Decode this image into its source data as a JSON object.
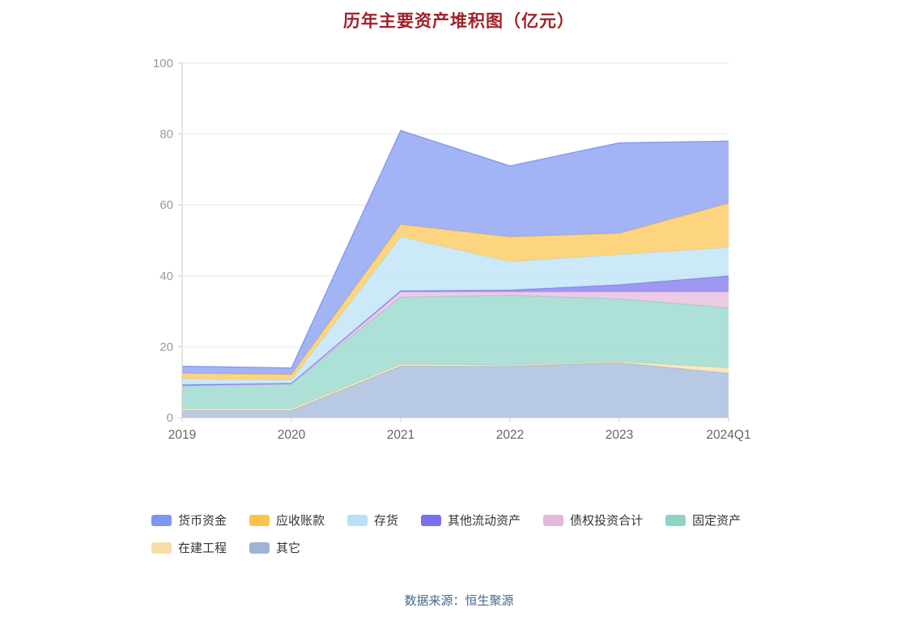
{
  "colors": {
    "title": "#a02128",
    "footer_source": "#45688e",
    "grid": "#e8e8e8",
    "axis": "#cccccc",
    "y_tick_label": "#999999",
    "x_tick_label": "#666666"
  },
  "chart_data": {
    "type": "area",
    "stacked": true,
    "title": "历年主要资产堆积图（亿元）",
    "categories": [
      "2019",
      "2020",
      "2021",
      "2022",
      "2023",
      "2024Q1"
    ],
    "series": [
      {
        "name": "其它",
        "color": "#9db4d9",
        "values": [
          2,
          2,
          14.5,
          14.5,
          15.5,
          12.5
        ]
      },
      {
        "name": "在建工程",
        "color": "#f8dda6",
        "values": [
          0.5,
          0.5,
          0.5,
          0.3,
          0.3,
          1.5
        ]
      },
      {
        "name": "固定资产",
        "color": "#8ed4c6",
        "values": [
          6.5,
          7,
          19,
          19.7,
          17.7,
          17
        ]
      },
      {
        "name": "债权投资合计",
        "color": "#e4b7dc",
        "values": [
          0,
          0,
          1.5,
          1,
          2,
          4.5
        ]
      },
      {
        "name": "其他流动资产",
        "color": "#7a70ee",
        "values": [
          0.3,
          0.2,
          0.3,
          0.5,
          2,
          4.5
        ]
      },
      {
        "name": "存货",
        "color": "#b9e1f6",
        "values": [
          1.7,
          1,
          15.2,
          8,
          8.5,
          8
        ]
      },
      {
        "name": "应收账款",
        "color": "#fcc44d",
        "values": [
          1.5,
          1.5,
          3.5,
          7,
          6,
          12.5
        ]
      },
      {
        "name": "货币资金",
        "color": "#7e95f3",
        "values": [
          2,
          1.8,
          26.5,
          20,
          25.5,
          17.5
        ]
      }
    ],
    "totals": [
      14.5,
      14,
      81,
      71,
      77.5,
      78
    ],
    "legend_order": [
      "货币资金",
      "应收账款",
      "存货",
      "其他流动资产",
      "债权投资合计",
      "固定资产",
      "在建工程",
      "其它"
    ],
    "ylim": [
      0,
      100
    ],
    "yticks": [
      0,
      20,
      40,
      60,
      80,
      100
    ],
    "grid": true,
    "legend_position": "bottom"
  },
  "footer": {
    "source_label": "数据来源：恒生聚源"
  }
}
